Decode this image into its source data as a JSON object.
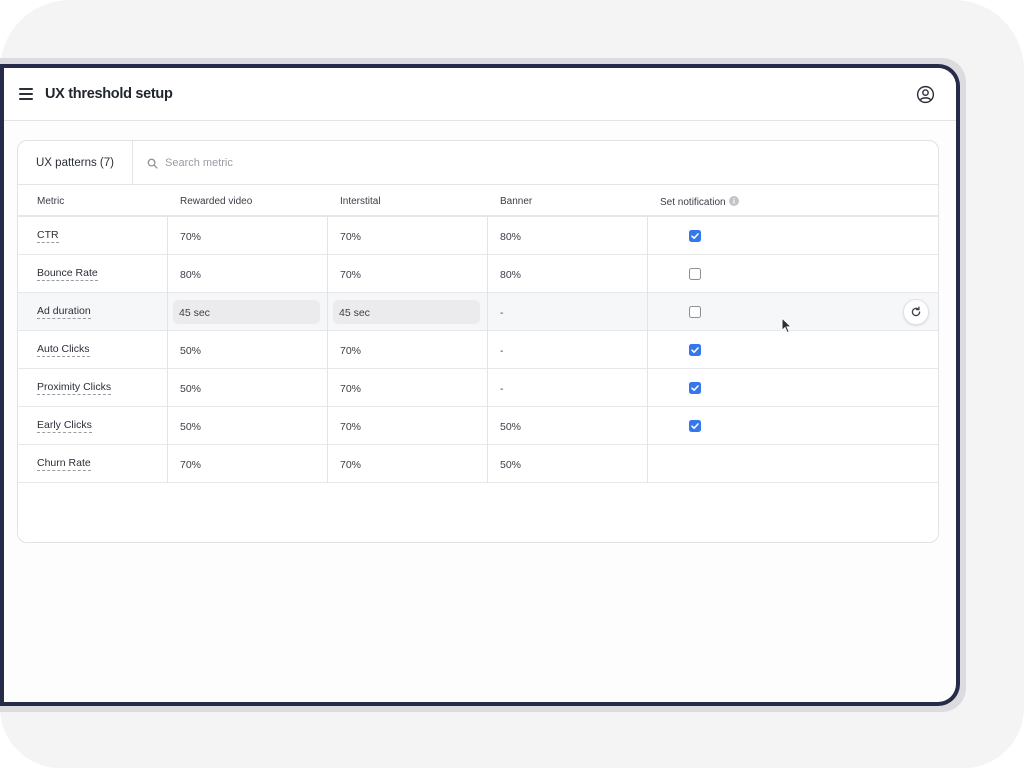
{
  "app": {
    "title": "UX threshold setup"
  },
  "patterns_tab": {
    "label": "UX patterns (7)"
  },
  "search": {
    "placeholder": "Search metric",
    "value": ""
  },
  "table": {
    "columns": [
      "Metric",
      "Rewarded video",
      "Interstital",
      "Banner",
      "Set notification"
    ],
    "rows": [
      {
        "metric": "CTR",
        "rewarded_video": "70%",
        "interstital": "70%",
        "banner": "80%",
        "notify": true
      },
      {
        "metric": "Bounce Rate",
        "rewarded_video": "80%",
        "interstital": "70%",
        "banner": "80%",
        "notify": false
      },
      {
        "metric": "Ad duration",
        "rewarded_video": "45 sec",
        "interstital": "45 sec",
        "banner": "-",
        "notify": false,
        "editing": true
      },
      {
        "metric": "Auto Clicks",
        "rewarded_video": "50%",
        "interstital": "70%",
        "banner": "-",
        "notify": true
      },
      {
        "metric": "Proximity Clicks",
        "rewarded_video": "50%",
        "interstital": "70%",
        "banner": "-",
        "notify": true
      },
      {
        "metric": "Early Clicks",
        "rewarded_video": "50%",
        "interstital": "70%",
        "banner": "50%",
        "notify": true
      },
      {
        "metric": "Churn Rate",
        "rewarded_video": "70%",
        "interstital": "70%",
        "banner": "50%",
        "notify": null
      }
    ]
  },
  "colors": {
    "checkbox_checked": "#3477ee",
    "device_frame": "#262b47",
    "row_highlight": "#f6f7f9"
  },
  "icons": {
    "menu": "hamburger-icon",
    "user": "user-circle-icon",
    "search": "search-icon",
    "info": "info-icon",
    "reset": "refresh-icon"
  }
}
